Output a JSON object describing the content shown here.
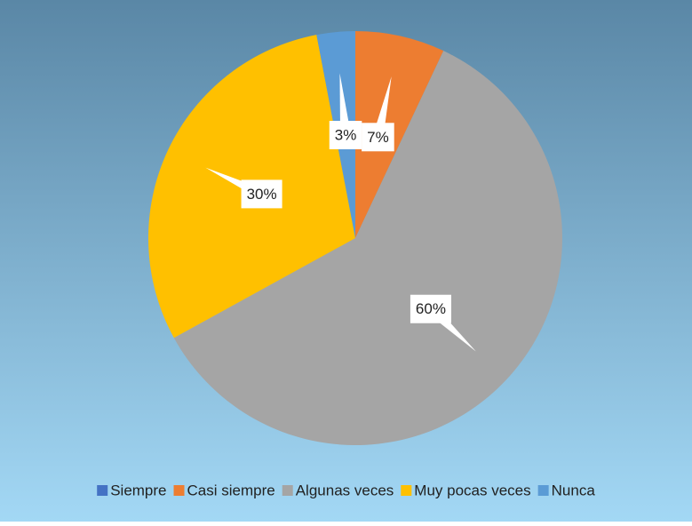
{
  "chart_data": {
    "type": "pie",
    "categories": [
      "Siempre",
      "Casi siempre",
      "Algunas veces",
      "Muy pocas veces",
      "Nunca"
    ],
    "values": [
      0,
      7,
      60,
      30,
      3
    ],
    "value_labels": [
      null,
      "7%",
      "60%",
      "30%",
      "3%"
    ],
    "colors": [
      "#4472c4",
      "#ed7d31",
      "#a5a5a5",
      "#ffc000",
      "#5b9bd5"
    ],
    "legend": "bottom"
  }
}
